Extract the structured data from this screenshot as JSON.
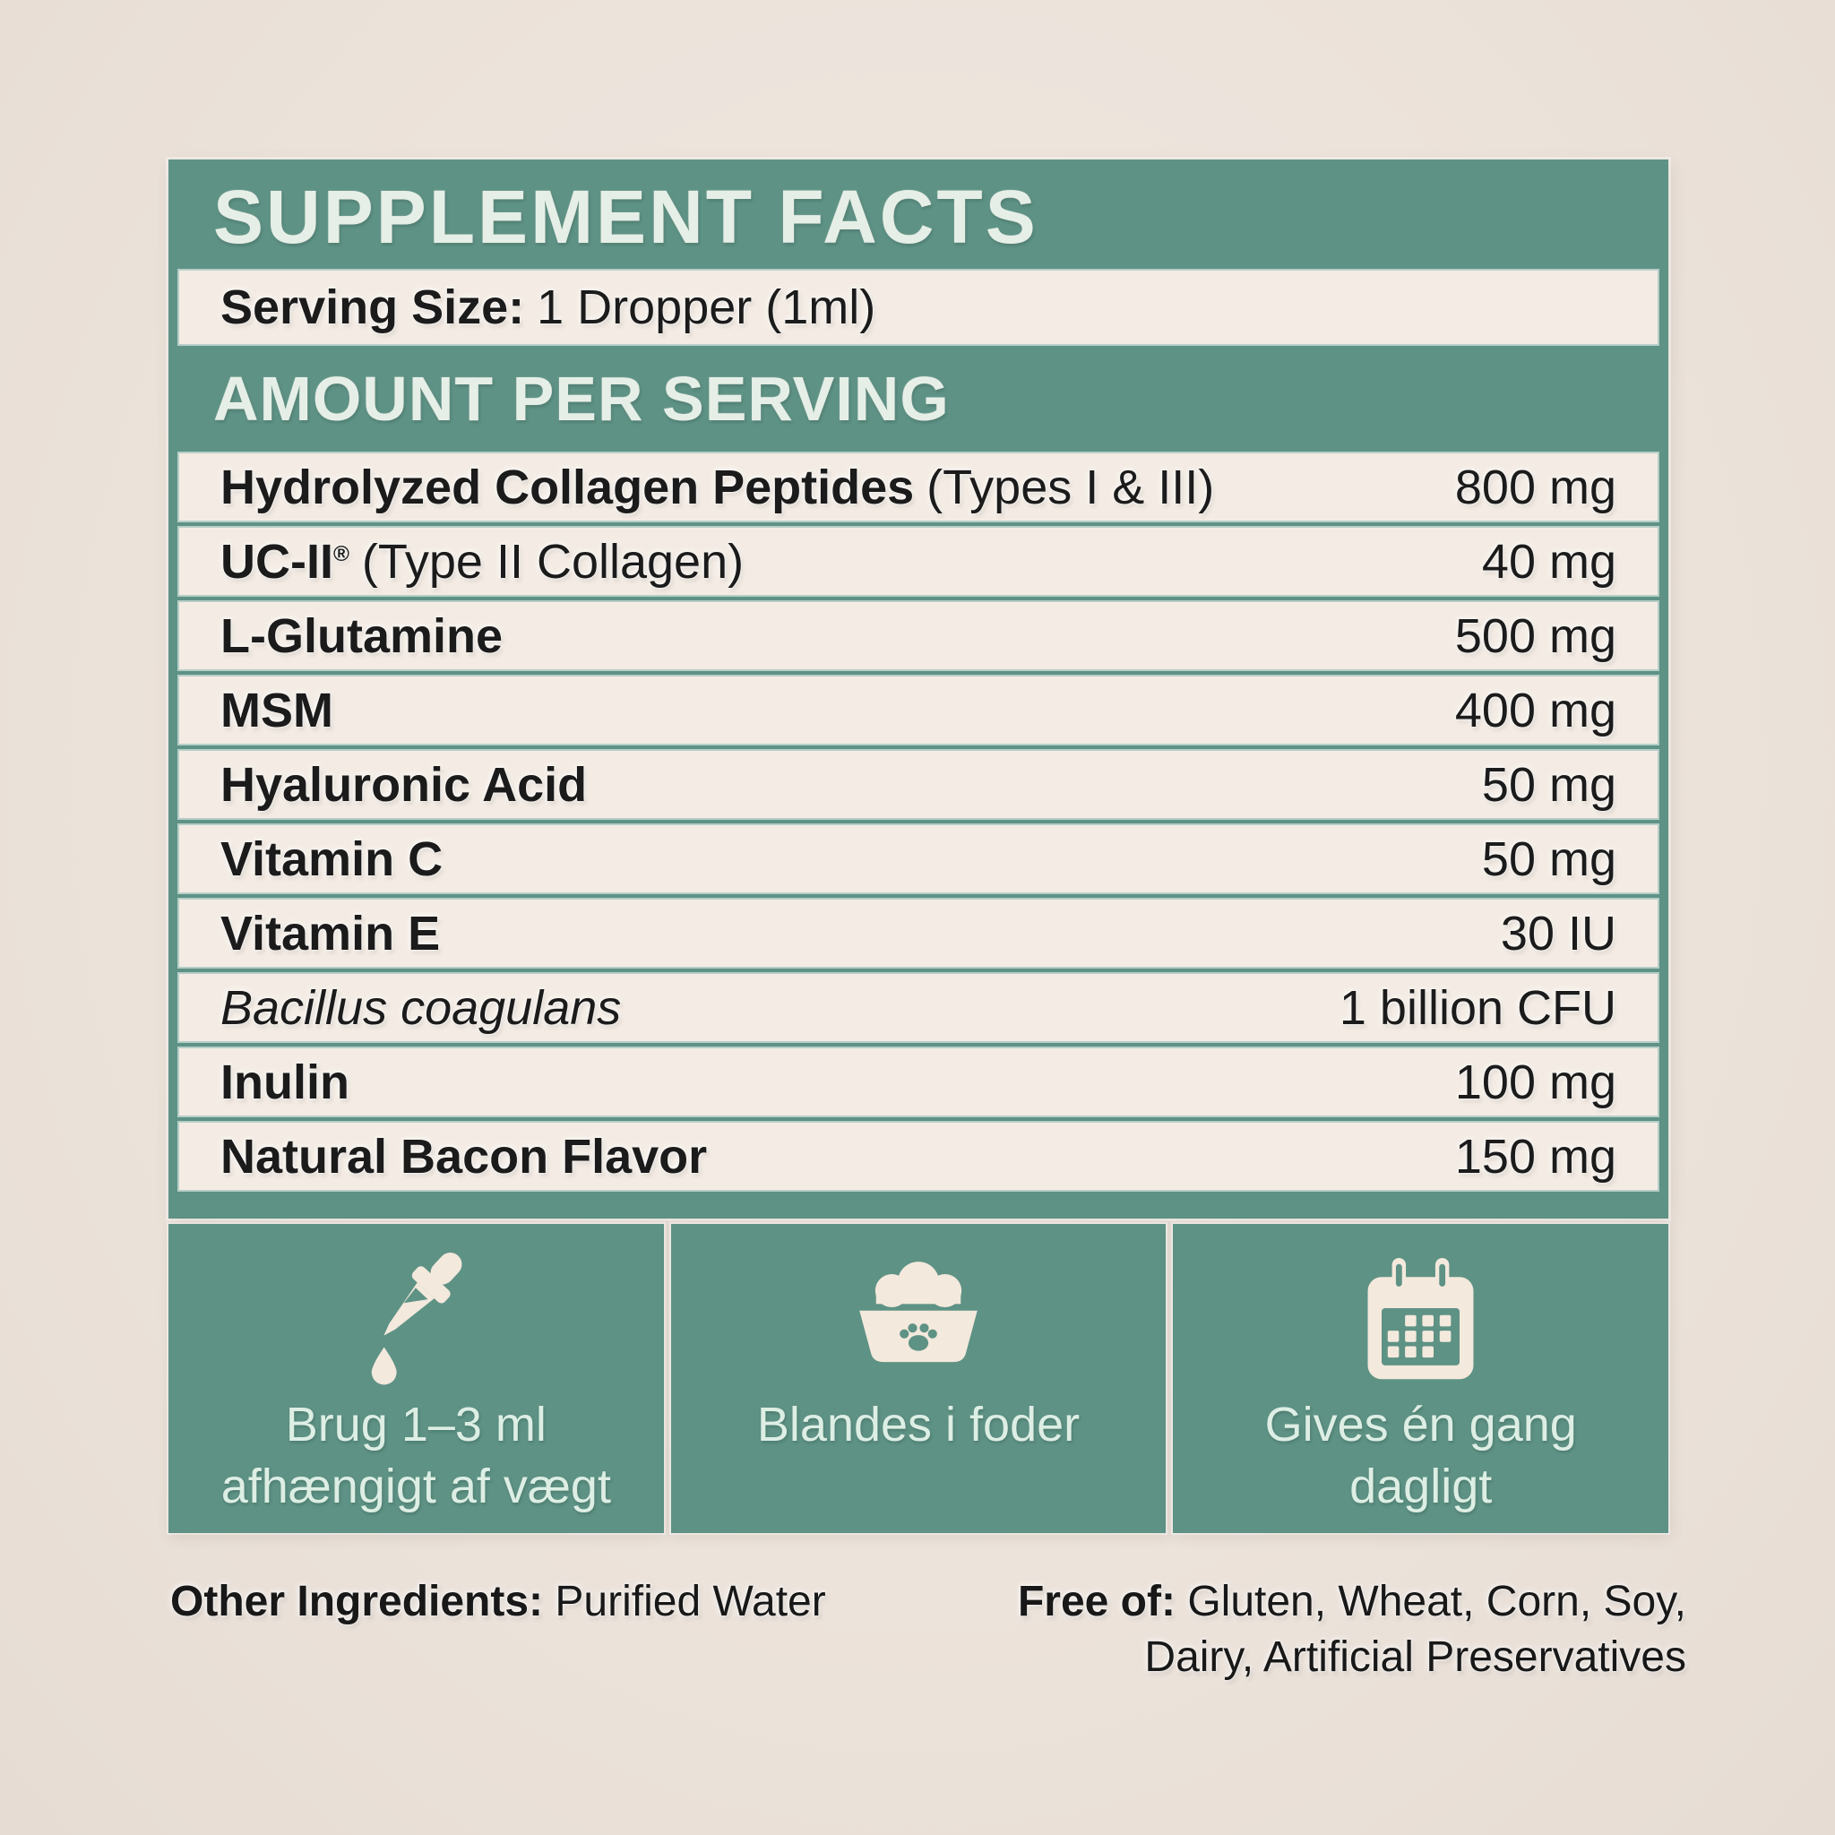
{
  "colors": {
    "accent_green": "#5e9285",
    "page_background": "#ece3db",
    "row_background": "#f4ece4",
    "header_text": "#e6efe7",
    "body_text": "#1b1b1b",
    "box_caption_text": "#ddeee4"
  },
  "header": {
    "title": "SUPPLEMENT FACTS"
  },
  "serving": {
    "label": "Serving Size:",
    "value": "1 Dropper (1ml)"
  },
  "amount_header": {
    "title": "AMOUNT PER SERVING"
  },
  "table": {
    "rows": [
      {
        "name": "Hydrolyzed Collagen Peptides",
        "detail": "(Types I & III)",
        "amount": "800 mg"
      },
      {
        "name": "UC-II",
        "sup": "®",
        "detail": "(Type II Collagen)",
        "amount": "40 mg"
      },
      {
        "name": "L-Glutamine",
        "amount": "500 mg"
      },
      {
        "name": "MSM",
        "amount": "400 mg"
      },
      {
        "name": "Hyaluronic Acid",
        "amount": "50 mg"
      },
      {
        "name": "Vitamin C",
        "amount": "50 mg"
      },
      {
        "name": "Vitamin E",
        "amount": "30 IU"
      },
      {
        "name": "Bacillus coagulans",
        "italic": true,
        "amount": "1 billion CFU"
      },
      {
        "name": "Inulin",
        "amount": "100 mg"
      },
      {
        "name": "Natural Bacon Flavor",
        "amount": "150 mg"
      }
    ]
  },
  "usage_boxes": [
    {
      "icon": "dropper-icon",
      "lines": [
        "Brug 1–3 ml",
        "afhængigt af vægt"
      ]
    },
    {
      "icon": "pet-bowl-icon",
      "lines": [
        "Blandes i foder"
      ]
    },
    {
      "icon": "calendar-icon",
      "lines": [
        "Gives én gang",
        "dagligt"
      ]
    }
  ],
  "footer": {
    "other_label": "Other Ingredients:",
    "other_value": "Purified Water",
    "free_label": "Free of:",
    "free_line1": "Gluten, Wheat, Corn, Soy,",
    "free_line2": "Dairy, Artificial Preservatives"
  }
}
